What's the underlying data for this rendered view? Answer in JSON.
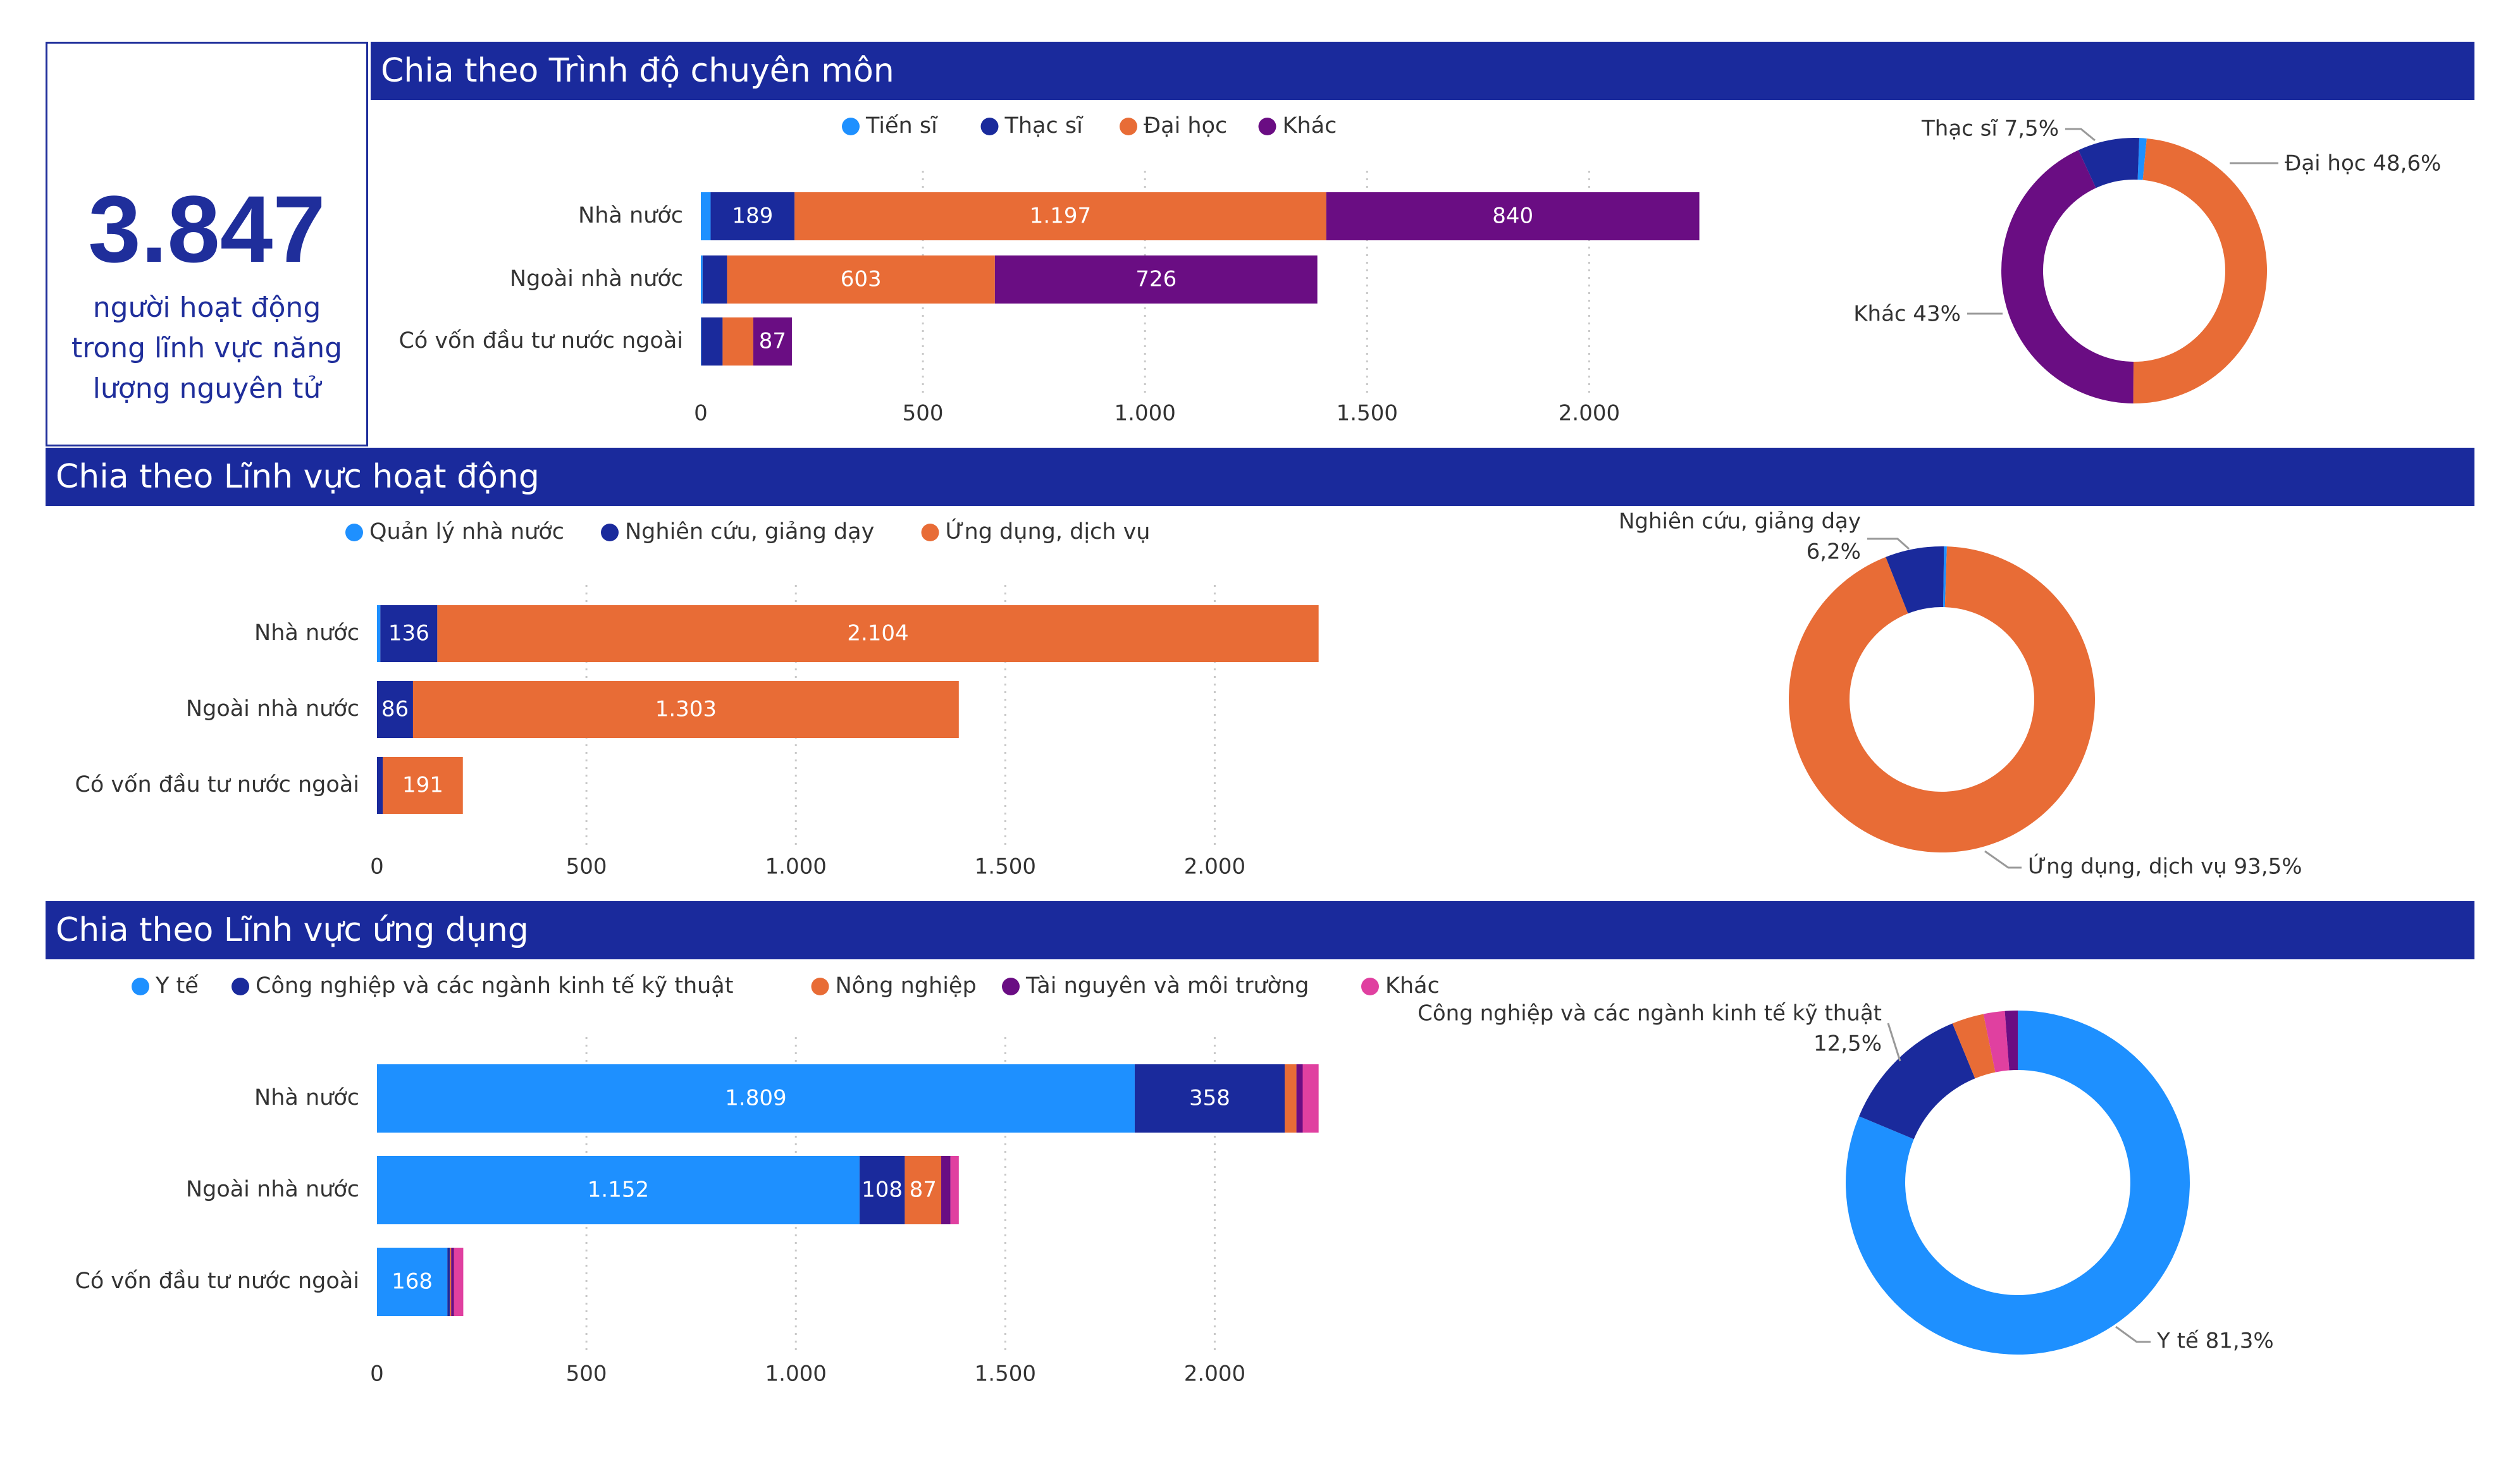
{
  "kpi": {
    "value": "3.847",
    "label": "người hoạt động trong lĩnh vực năng lượng nguyên tử"
  },
  "sections": [
    {
      "title": "Chia theo Trình độ chuyên môn"
    },
    {
      "title": "Chia theo Lĩnh vực hoạt động"
    },
    {
      "title": "Chia theo Lĩnh vực ứng dụng"
    }
  ],
  "chart_data": [
    {
      "type": "bar",
      "orientation": "horizontal",
      "stacked": true,
      "categories": [
        "Nhà nước",
        "Ngoài nhà nước",
        "Có vốn đầu tư nước ngoài"
      ],
      "series": [
        {
          "name": "Tiến sĩ",
          "color": "#1e90ff",
          "values": [
            22,
            4,
            1
          ],
          "labels": [
            "",
            "",
            ""
          ]
        },
        {
          "name": "Thạc sĩ",
          "color": "#1a2a9c",
          "values": [
            189,
            55,
            48
          ],
          "labels": [
            "189",
            "",
            ""
          ]
        },
        {
          "name": "Đại học",
          "color": "#e86c36",
          "values": [
            1197,
            603,
            69
          ],
          "labels": [
            "1.197",
            "603",
            ""
          ]
        },
        {
          "name": "Khác",
          "color": "#6a0d83",
          "values": [
            840,
            726,
            87
          ],
          "labels": [
            "840",
            "726",
            "87"
          ]
        }
      ],
      "xlim": [
        0,
        2250
      ],
      "xticks": [
        0,
        500,
        1000,
        1500,
        2000
      ],
      "xtick_labels": [
        "0",
        "500",
        "1.000",
        "1.500",
        "2.000"
      ],
      "legend": "top",
      "grid": "vertical dotted"
    },
    {
      "type": "pie",
      "donut": true,
      "slices": [
        {
          "name": "Tiến sĩ",
          "value": 0.9,
          "color": "#1e90ff",
          "label": ""
        },
        {
          "name": "Đại học",
          "value": 48.6,
          "color": "#e86c36",
          "label": "Đại học 48,6%"
        },
        {
          "name": "Khác",
          "value": 43.0,
          "color": "#6a0d83",
          "label": "Khác 43%"
        },
        {
          "name": "Thạc sĩ",
          "value": 7.5,
          "color": "#1a2a9c",
          "label": "Thạc sĩ 7,5%"
        }
      ]
    },
    {
      "type": "bar",
      "orientation": "horizontal",
      "stacked": true,
      "categories": [
        "Nhà nước",
        "Ngoài nhà nước",
        "Có vốn đầu tư nước ngoài"
      ],
      "series": [
        {
          "name": "Quản lý nhà nước",
          "color": "#1e90ff",
          "values": [
            8,
            0,
            0
          ],
          "labels": [
            "",
            "",
            ""
          ]
        },
        {
          "name": "Nghiên cứu, giảng dạy",
          "color": "#1a2a9c",
          "values": [
            136,
            86,
            14
          ],
          "labels": [
            "136",
            "86",
            ""
          ]
        },
        {
          "name": "Ứng dụng, dịch vụ",
          "color": "#e86c36",
          "values": [
            2104,
            1303,
            191
          ],
          "labels": [
            "2.104",
            "1.303",
            "191"
          ]
        }
      ],
      "xlim": [
        0,
        2250
      ],
      "xticks": [
        0,
        500,
        1000,
        1500,
        2000
      ],
      "xtick_labels": [
        "0",
        "500",
        "1.000",
        "1.500",
        "2.000"
      ],
      "legend": "top",
      "grid": "vertical dotted"
    },
    {
      "type": "pie",
      "donut": true,
      "slices": [
        {
          "name": "Quản lý nhà nước",
          "value": 0.3,
          "color": "#1e90ff",
          "label": ""
        },
        {
          "name": "Ứng dụng, dịch vụ",
          "value": 93.5,
          "color": "#e86c36",
          "label": "Ứng dụng, dịch vụ 93,5%"
        },
        {
          "name": "Nghiên cứu, giảng dạy",
          "value": 6.2,
          "color": "#1a2a9c",
          "label": "Nghiên cứu, giảng dạy|6,2%"
        }
      ]
    },
    {
      "type": "bar",
      "orientation": "horizontal",
      "stacked": true,
      "categories": [
        "Nhà nước",
        "Ngoài nhà nước",
        "Có vốn đầu tư nước ngoài"
      ],
      "series": [
        {
          "name": "Y tế",
          "color": "#1e90ff",
          "values": [
            1809,
            1152,
            168
          ],
          "labels": [
            "1.809",
            "1.152",
            "168"
          ]
        },
        {
          "name": "Công nghiệp và các ngành kinh tế kỹ thuật",
          "color": "#1a2a9c",
          "values": [
            358,
            108,
            6
          ],
          "labels": [
            "358",
            "108",
            ""
          ]
        },
        {
          "name": "Nông nghiệp",
          "color": "#e86c36",
          "values": [
            28,
            87,
            3
          ],
          "labels": [
            "",
            "87",
            ""
          ]
        },
        {
          "name": "Tài nguyên và môi trường",
          "color": "#6a0d83",
          "values": [
            15,
            22,
            7
          ],
          "labels": [
            "",
            "",
            ""
          ]
        },
        {
          "name": "Khác",
          "color": "#e040a0",
          "values": [
            38,
            20,
            22
          ],
          "labels": [
            "",
            "",
            ""
          ]
        }
      ],
      "xlim": [
        0,
        2250
      ],
      "xticks": [
        0,
        500,
        1000,
        1500,
        2000
      ],
      "xtick_labels": [
        "0",
        "500",
        "1.000",
        "1.500",
        "2.000"
      ],
      "legend": "top",
      "grid": "vertical dotted"
    },
    {
      "type": "pie",
      "donut": true,
      "slices": [
        {
          "name": "Y tế",
          "value": 81.3,
          "color": "#1e90ff",
          "label": "Y tế 81,3%"
        },
        {
          "name": "Công nghiệp và các ngành kinh tế kỹ thuật",
          "value": 12.5,
          "color": "#1a2a9c",
          "label": "Công nghiệp và các ngành kinh tế kỹ thuật|12,5%"
        },
        {
          "name": "Nông nghiệp",
          "value": 3.0,
          "color": "#e86c36",
          "label": ""
        },
        {
          "name": "Khác",
          "value": 2.0,
          "color": "#e040a0",
          "label": ""
        },
        {
          "name": "Tài nguyên và môi trường",
          "value": 1.2,
          "color": "#6a0d83",
          "label": ""
        }
      ]
    }
  ]
}
